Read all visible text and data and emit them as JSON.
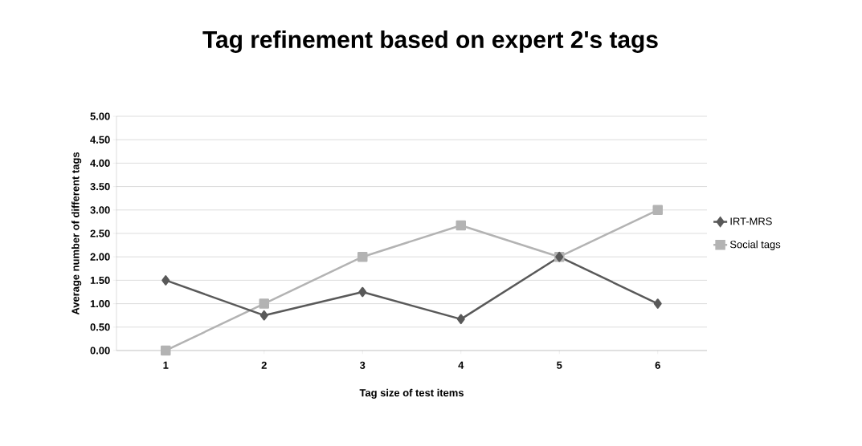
{
  "chart_data": {
    "type": "line",
    "title": "Tag refinement based on expert 2's tags",
    "xlabel": "Tag size of test items",
    "ylabel": "Average number of different tags",
    "categories": [
      "1",
      "2",
      "3",
      "4",
      "5",
      "6"
    ],
    "series": [
      {
        "name": "IRT-MRS",
        "color": "#595959",
        "marker": "diamond",
        "values": [
          1.5,
          0.75,
          1.25,
          0.67,
          2.0,
          1.0
        ]
      },
      {
        "name": "Social tags",
        "color": "#b3b3b3",
        "marker": "square",
        "values": [
          0,
          1.0,
          2.0,
          2.67,
          2.0,
          3.0
        ]
      }
    ],
    "ylim": [
      0,
      5
    ],
    "yticks": [
      {
        "value": 0,
        "label": "0.00"
      },
      {
        "value": 0.5,
        "label": "0.50"
      },
      {
        "value": 1,
        "label": "1.00"
      },
      {
        "value": 1.5,
        "label": "1.50"
      },
      {
        "value": 2,
        "label": "2.00"
      },
      {
        "value": 2.5,
        "label": "2.50"
      },
      {
        "value": 3,
        "label": "3.00"
      },
      {
        "value": 3.5,
        "label": "3.50"
      },
      {
        "value": 4,
        "label": "4.00"
      },
      {
        "value": 4.5,
        "label": "4.50"
      },
      {
        "value": 5,
        "label": "5.00"
      }
    ],
    "grid": "y",
    "legend": "right",
    "line_style": "solid"
  }
}
